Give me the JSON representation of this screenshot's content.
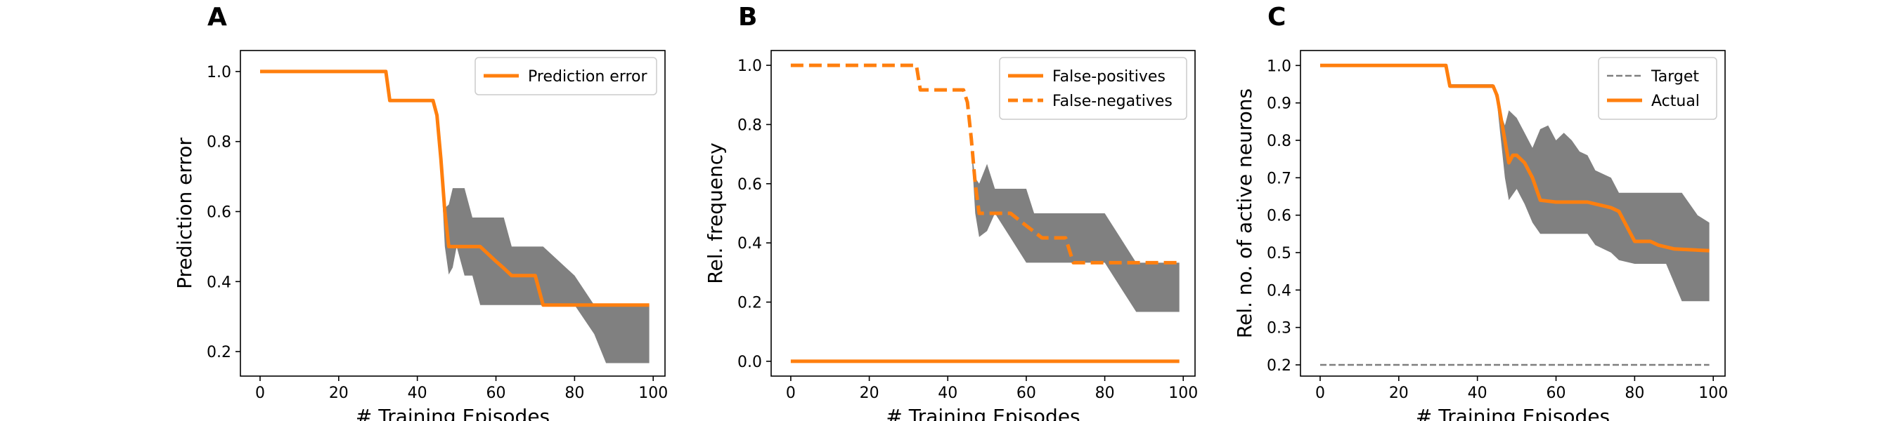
{
  "colors": {
    "orange": "#ff7f0e",
    "gray": "#808080",
    "target": "#7f7f7f"
  },
  "chart_data": [
    {
      "type": "line",
      "panel": "A",
      "xlabel": "# Training Episodes",
      "ylabel": "Prediction error",
      "xlim": [
        -5,
        103
      ],
      "ylim": [
        0.13,
        1.06
      ],
      "xticks": [
        0,
        20,
        40,
        60,
        80,
        100
      ],
      "yticks": [
        0.2,
        0.4,
        0.6,
        0.8,
        1.0
      ],
      "ytick_labels": [
        "0.2",
        "0.4",
        "0.6",
        "0.8",
        "1.0"
      ],
      "legend_position": "top-right",
      "band": {
        "x": [
          0,
          32,
          33,
          44,
          45,
          46,
          47,
          48,
          49,
          50,
          52,
          54,
          56,
          60,
          62,
          64,
          70,
          72,
          80,
          85,
          88,
          92,
          99
        ],
        "upper": [
          1.0,
          1.0,
          0.917,
          0.917,
          0.833,
          0.72,
          0.61,
          0.62,
          0.667,
          0.667,
          0.667,
          0.583,
          0.583,
          0.583,
          0.583,
          0.5,
          0.5,
          0.5,
          0.417,
          0.333,
          0.333,
          0.333,
          0.333
        ],
        "lower": [
          1.0,
          1.0,
          0.917,
          0.917,
          0.833,
          0.72,
          0.5,
          0.42,
          0.44,
          0.5,
          0.417,
          0.417,
          0.333,
          0.333,
          0.333,
          0.333,
          0.333,
          0.333,
          0.333,
          0.25,
          0.167,
          0.167,
          0.167
        ]
      },
      "series": [
        {
          "name": "Prediction error",
          "style": "solid",
          "x": [
            0,
            32,
            33,
            44,
            45,
            46,
            47,
            48,
            50,
            56,
            58,
            60,
            62,
            64,
            70,
            72,
            80,
            99
          ],
          "y": [
            1.0,
            1.0,
            0.917,
            0.917,
            0.875,
            0.75,
            0.6,
            0.5,
            0.5,
            0.5,
            0.479,
            0.458,
            0.438,
            0.417,
            0.417,
            0.333,
            0.333,
            0.333
          ]
        }
      ]
    },
    {
      "type": "line",
      "panel": "B",
      "xlabel": "# Training Episodes",
      "ylabel": "Rel. frequency",
      "xlim": [
        -5,
        103
      ],
      "ylim": [
        -0.05,
        1.05
      ],
      "xticks": [
        0,
        20,
        40,
        60,
        80,
        100
      ],
      "yticks": [
        0.0,
        0.2,
        0.4,
        0.6,
        0.8,
        1.0
      ],
      "ytick_labels": [
        "0.0",
        "0.2",
        "0.4",
        "0.6",
        "0.8",
        "1.0"
      ],
      "legend_position": "top-right",
      "band": {
        "x": [
          0,
          32,
          33,
          44,
          45,
          46,
          47,
          48,
          50,
          52,
          56,
          60,
          62,
          64,
          72,
          80,
          84,
          88,
          92,
          99
        ],
        "upper": [
          1.0,
          1.0,
          0.917,
          0.917,
          0.833,
          0.72,
          0.62,
          0.6,
          0.667,
          0.583,
          0.583,
          0.583,
          0.5,
          0.5,
          0.5,
          0.5,
          0.417,
          0.333,
          0.333,
          0.333
        ],
        "lower": [
          1.0,
          1.0,
          0.917,
          0.917,
          0.833,
          0.72,
          0.5,
          0.42,
          0.44,
          0.5,
          0.417,
          0.333,
          0.333,
          0.333,
          0.333,
          0.333,
          0.25,
          0.167,
          0.167,
          0.167
        ]
      },
      "series": [
        {
          "name": "False-positives",
          "style": "solid",
          "x": [
            0,
            99
          ],
          "y": [
            0.0,
            0.0
          ]
        },
        {
          "name": "False-negatives",
          "style": "dashed",
          "x": [
            0,
            32,
            33,
            44,
            45,
            46,
            47,
            48,
            50,
            56,
            58,
            60,
            62,
            64,
            70,
            72,
            80,
            99
          ],
          "y": [
            1.0,
            1.0,
            0.917,
            0.917,
            0.875,
            0.75,
            0.6,
            0.5,
            0.5,
            0.5,
            0.479,
            0.458,
            0.438,
            0.417,
            0.417,
            0.333,
            0.333,
            0.333
          ]
        }
      ]
    },
    {
      "type": "line",
      "panel": "C",
      "xlabel": "# Training Episodes",
      "ylabel": "Rel. no. of active neurons",
      "xlim": [
        -5,
        103
      ],
      "ylim": [
        0.17,
        1.04
      ],
      "xticks": [
        0,
        20,
        40,
        60,
        80,
        100
      ],
      "yticks": [
        0.2,
        0.3,
        0.4,
        0.5,
        0.6,
        0.7,
        0.8,
        0.9,
        1.0
      ],
      "ytick_labels": [
        "0.2",
        "0.3",
        "0.4",
        "0.5",
        "0.6",
        "0.7",
        "0.8",
        "0.9",
        "1.0"
      ],
      "legend_position": "top-right",
      "band": {
        "x": [
          0,
          32,
          33,
          44,
          45,
          46,
          47,
          48,
          50,
          52,
          54,
          56,
          58,
          60,
          62,
          64,
          66,
          68,
          70,
          74,
          76,
          80,
          84,
          88,
          92,
          96,
          99
        ],
        "upper": [
          1.0,
          1.0,
          0.95,
          0.95,
          0.9,
          0.87,
          0.84,
          0.88,
          0.86,
          0.82,
          0.78,
          0.83,
          0.84,
          0.8,
          0.82,
          0.8,
          0.77,
          0.76,
          0.72,
          0.7,
          0.66,
          0.66,
          0.66,
          0.66,
          0.66,
          0.6,
          0.58
        ],
        "lower": [
          1.0,
          1.0,
          0.94,
          0.94,
          0.9,
          0.8,
          0.7,
          0.64,
          0.67,
          0.63,
          0.58,
          0.55,
          0.55,
          0.55,
          0.55,
          0.55,
          0.55,
          0.55,
          0.52,
          0.5,
          0.48,
          0.47,
          0.47,
          0.47,
          0.37,
          0.37,
          0.37
        ]
      },
      "series": [
        {
          "name": "Target",
          "style": "dashed-thin",
          "x": [
            0,
            99
          ],
          "y": [
            0.2,
            0.2
          ]
        },
        {
          "name": "Actual",
          "style": "solid",
          "x": [
            0,
            32,
            33,
            44,
            45,
            47,
            48,
            49,
            50,
            52,
            54,
            56,
            60,
            64,
            68,
            70,
            74,
            76,
            78,
            80,
            84,
            86,
            88,
            90,
            99
          ],
          "y": [
            1.0,
            1.0,
            0.945,
            0.945,
            0.92,
            0.8,
            0.74,
            0.76,
            0.76,
            0.74,
            0.7,
            0.64,
            0.635,
            0.635,
            0.635,
            0.63,
            0.62,
            0.61,
            0.57,
            0.53,
            0.53,
            0.52,
            0.515,
            0.51,
            0.505
          ]
        }
      ]
    }
  ]
}
